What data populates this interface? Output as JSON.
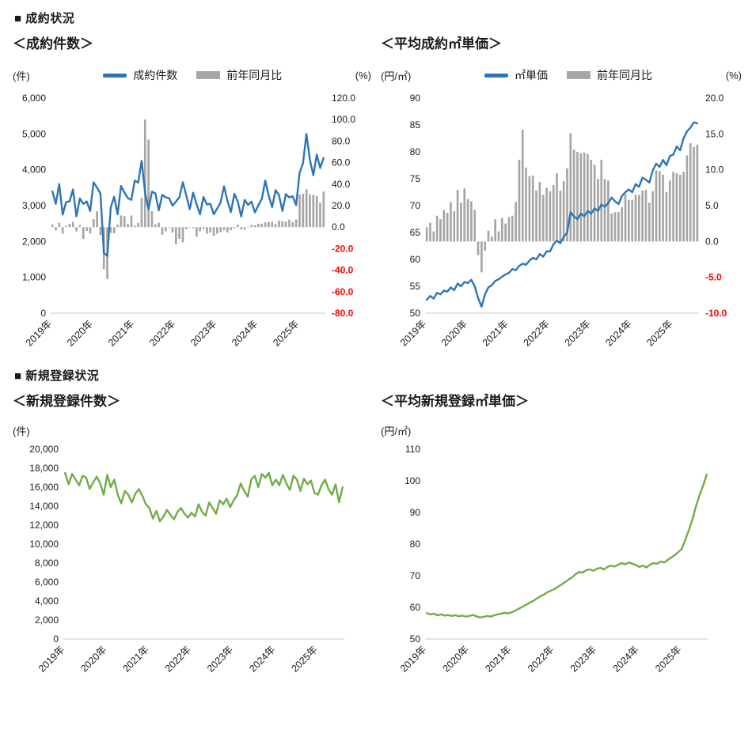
{
  "sections": [
    {
      "title": "■ 成約状況"
    },
    {
      "title": "■ 新規登録状況"
    }
  ],
  "colors": {
    "line_blue": "#2E75B6",
    "bar_gray": "#A6A6A6",
    "line_green": "#70AD47",
    "negative_label": "#FF0000",
    "axis_text": "#1a1a1a"
  },
  "chart_data": [
    {
      "title": "＜成約件数＞",
      "type": "combo",
      "unit_left": "(件)",
      "unit_right": "(%)",
      "x_start": "2019-01",
      "x_end": "2025-08",
      "x_frequency": "monthly",
      "x_tick_labels": [
        "2019年",
        "2020年",
        "2021年",
        "2022年",
        "2023年",
        "2024年",
        "2025年"
      ],
      "x_tick_every": 12,
      "grid": false,
      "legend_position": "top",
      "left_axis": {
        "min": 0,
        "max": 6000,
        "step": 1000,
        "comma": true,
        "decimals": 0
      },
      "right_axis": {
        "min": -80,
        "max": 120,
        "step": 20,
        "decimals": 1
      },
      "series": [
        {
          "name": "成約件数",
          "kind": "line",
          "axis": "left",
          "color": "#2E75B6",
          "values": [
            3400,
            3050,
            3600,
            2750,
            3100,
            3120,
            3450,
            2700,
            3200,
            3050,
            3120,
            2850,
            3650,
            3500,
            3340,
            1680,
            1600,
            2950,
            3250,
            2760,
            3550,
            3360,
            3210,
            3160,
            3700,
            3640,
            4250,
            3360,
            2900,
            3390,
            3340,
            2870,
            3300,
            3230,
            3210,
            3000,
            3110,
            3240,
            3650,
            3290,
            2900,
            3360,
            3040,
            2760,
            3240,
            3030,
            3050,
            2760,
            2920,
            3090,
            3540,
            3130,
            2820,
            3330,
            3110,
            2700,
            3160,
            3020,
            3110,
            2810,
            3010,
            3190,
            3700,
            3280,
            2960,
            3430,
            3300,
            2850,
            3320,
            3230,
            3260,
            3010,
            3920,
            4180,
            5000,
            4280,
            3850,
            4420,
            4050,
            4330
          ]
        },
        {
          "name": "前年同月比",
          "kind": "bar",
          "axis": "right",
          "color": "#A6A6A6",
          "values": [
            2.5,
            -3.0,
            4.0,
            -6.0,
            1.5,
            3.0,
            5.0,
            -4.0,
            2.0,
            -11.0,
            -3.5,
            -6.0,
            7.4,
            14.8,
            -7.2,
            -38.9,
            -48.4,
            -5.4,
            -5.8,
            2.2,
            10.9,
            10.2,
            2.9,
            10.9,
            1.4,
            4.0,
            27.2,
            100.0,
            81.3,
            14.9,
            2.8,
            4.0,
            -7.0,
            -3.9,
            0.0,
            -5.1,
            -15.9,
            -11.0,
            -14.1,
            -2.1,
            0.0,
            -0.9,
            -9.0,
            -3.8,
            -1.8,
            -6.2,
            -5.0,
            -8.0,
            -6.1,
            -4.6,
            -3.0,
            -4.9,
            -2.8,
            -0.9,
            2.3,
            -2.2,
            -2.5,
            -0.3,
            2.0,
            1.8,
            3.1,
            3.2,
            4.5,
            4.8,
            5.0,
            3.0,
            6.1,
            5.6,
            5.1,
            7.0,
            4.8,
            7.1,
            30.2,
            31.0,
            35.1,
            30.5,
            30.1,
            28.9,
            22.7,
            33.0
          ]
        }
      ]
    },
    {
      "title": "＜平均成約㎡単価＞",
      "type": "combo",
      "unit_left": "(円/㎡)",
      "unit_right": "(%)",
      "x_start": "2019-01",
      "x_end": "2025-08",
      "x_frequency": "monthly",
      "x_tick_labels": [
        "2019年",
        "2020年",
        "2021年",
        "2022年",
        "2023年",
        "2024年",
        "2025年"
      ],
      "x_tick_every": 12,
      "grid": false,
      "legend_position": "top",
      "left_axis": {
        "min": 50,
        "max": 90,
        "step": 5,
        "comma": false,
        "decimals": 0
      },
      "right_axis": {
        "min": -10,
        "max": 20,
        "step": 5,
        "decimals": 1
      },
      "series": [
        {
          "name": "㎡単価",
          "kind": "line",
          "axis": "left",
          "color": "#2E75B6",
          "values": [
            52.5,
            53.2,
            52.7,
            53.8,
            53.5,
            54.2,
            54.0,
            54.8,
            54.3,
            55.5,
            55.0,
            55.8,
            55.6,
            56.2,
            55.0,
            52.8,
            51.2,
            53.5,
            54.8,
            55.2,
            56.0,
            56.3,
            56.8,
            57.2,
            57.5,
            58.2,
            58.0,
            58.8,
            59.2,
            59.0,
            59.8,
            60.3,
            60.0,
            61.0,
            60.5,
            61.5,
            61.5,
            62.8,
            63.5,
            63.0,
            64.2,
            65.0,
            68.8,
            68.0,
            67.5,
            68.5,
            68.0,
            69.0,
            68.5,
            69.5,
            69.0,
            70.2,
            69.8,
            70.5,
            71.5,
            70.8,
            70.3,
            71.8,
            72.5,
            73.0,
            72.5,
            74.0,
            73.5,
            75.2,
            74.8,
            74.3,
            76.5,
            77.8,
            77.2,
            78.5,
            77.5,
            79.2,
            79.5,
            81.0,
            80.3,
            82.5,
            83.8,
            84.5,
            85.5,
            85.3
          ]
        },
        {
          "name": "前年同月比",
          "kind": "bar",
          "axis": "right",
          "color": "#A6A6A6",
          "values": [
            2.0,
            2.6,
            1.4,
            3.6,
            3.1,
            4.4,
            4.0,
            5.5,
            4.2,
            7.2,
            5.4,
            7.4,
            5.9,
            5.6,
            4.4,
            -1.9,
            -4.3,
            -1.3,
            1.5,
            0.7,
            3.1,
            1.4,
            3.3,
            2.5,
            3.4,
            3.6,
            5.5,
            11.4,
            15.6,
            10.3,
            9.1,
            9.2,
            7.1,
            8.3,
            6.5,
            7.5,
            7.0,
            7.9,
            9.5,
            7.1,
            8.4,
            10.2,
            15.1,
            12.8,
            12.5,
            12.3,
            12.4,
            12.2,
            11.4,
            10.7,
            8.7,
            11.4,
            8.7,
            8.5,
            3.9,
            4.1,
            4.1,
            4.8,
            6.6,
            5.8,
            5.8,
            6.5,
            6.5,
            7.1,
            7.2,
            5.4,
            7.0,
            9.9,
            9.8,
            9.3,
            6.9,
            8.5,
            9.7,
            9.5,
            9.3,
            9.7,
            12.0,
            13.7,
            13.2,
            13.5
          ]
        }
      ]
    },
    {
      "title": "＜新規登録件数＞",
      "type": "line",
      "unit_left": "(件)",
      "x_start": "2019-01",
      "x_end": "2025-08",
      "x_frequency": "monthly",
      "x_tick_labels": [
        "2019年",
        "2020年",
        "2021年",
        "2022年",
        "2023年",
        "2024年",
        "2025年"
      ],
      "x_tick_every": 12,
      "grid": false,
      "left_axis": {
        "min": 0,
        "max": 20000,
        "step": 2000,
        "comma": true,
        "decimals": 0
      },
      "series": [
        {
          "name": "新規登録件数",
          "kind": "line",
          "axis": "left",
          "color": "#70AD47",
          "values": [
            17500,
            16300,
            17400,
            16800,
            16200,
            17200,
            17000,
            15800,
            16500,
            17100,
            16400,
            15200,
            17300,
            16000,
            16800,
            15200,
            14300,
            15600,
            15200,
            14400,
            15300,
            15800,
            15100,
            14200,
            13800,
            12700,
            13500,
            12400,
            12900,
            13600,
            13100,
            12600,
            13400,
            13800,
            13200,
            12800,
            13300,
            12900,
            14200,
            13400,
            13000,
            14400,
            13800,
            13200,
            14600,
            14200,
            14800,
            13900,
            14600,
            15200,
            16400,
            15600,
            15000,
            16800,
            17200,
            16000,
            17400,
            17000,
            17500,
            16200,
            16800,
            16200,
            17300,
            16400,
            15700,
            17200,
            16800,
            15600,
            16900,
            16300,
            16700,
            15400,
            15200,
            16200,
            16800,
            15800,
            15200,
            16300,
            14400,
            16000
          ]
        }
      ]
    },
    {
      "title": "＜平均新規登録㎡単価＞",
      "type": "line",
      "unit_left": "(円/㎡)",
      "x_start": "2019-01",
      "x_end": "2025-08",
      "x_frequency": "monthly",
      "x_tick_labels": [
        "2019年",
        "2020年",
        "2021年",
        "2022年",
        "2023年",
        "2024年",
        "2025年"
      ],
      "x_tick_every": 12,
      "grid": false,
      "left_axis": {
        "min": 50,
        "max": 110,
        "step": 10,
        "comma": false,
        "decimals": 0
      },
      "series": [
        {
          "name": "平均新規登録㎡単価",
          "kind": "line",
          "axis": "left",
          "color": "#70AD47",
          "values": [
            58.2,
            57.8,
            58.0,
            57.5,
            57.8,
            57.4,
            57.6,
            57.3,
            57.5,
            57.2,
            57.4,
            57.1,
            57.3,
            57.6,
            57.2,
            56.8,
            57.0,
            57.3,
            57.1,
            57.5,
            57.8,
            58.0,
            58.3,
            58.1,
            58.5,
            59.0,
            59.6,
            60.2,
            60.8,
            61.5,
            62.0,
            62.8,
            63.5,
            64.0,
            64.8,
            65.3,
            65.8,
            66.5,
            67.2,
            68.0,
            68.8,
            69.5,
            70.5,
            71.2,
            71.0,
            71.8,
            72.0,
            71.6,
            72.2,
            72.5,
            72.0,
            72.8,
            73.2,
            72.9,
            73.5,
            74.0,
            73.6,
            74.2,
            73.8,
            73.4,
            72.8,
            73.2,
            72.6,
            73.5,
            74.0,
            73.8,
            74.5,
            74.2,
            75.0,
            75.8,
            76.5,
            77.5,
            78.5,
            81.5,
            84.5,
            88.0,
            92.0,
            95.5,
            98.5,
            102.0
          ]
        }
      ]
    }
  ]
}
